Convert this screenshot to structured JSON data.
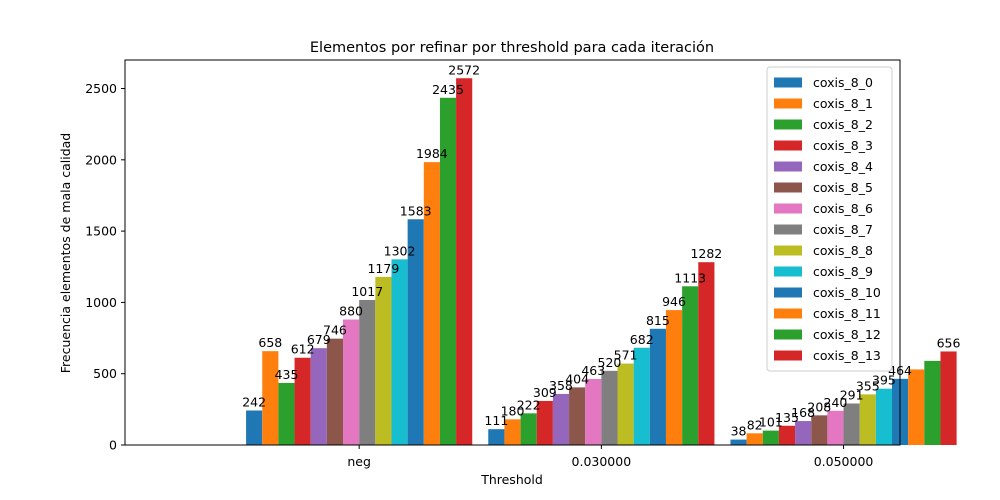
{
  "chart_data": {
    "type": "bar",
    "title": "Elementos por refinar por threshold para cada iteración",
    "xlabel": "Threshold",
    "ylabel": "Frecuencia elementos de mala calidad",
    "categories": [
      "neg",
      "0.030000",
      "0.050000"
    ],
    "ylim": [
      0,
      2700
    ],
    "yticks": [
      0,
      500,
      1000,
      1500,
      2000,
      2500
    ],
    "grid": false,
    "legend_position": "top-right",
    "series": [
      {
        "name": "coxis_8_0",
        "color": "#1f77b4",
        "values": [
          242,
          111,
          38
        ],
        "labels": [
          "242",
          "111",
          "38"
        ]
      },
      {
        "name": "coxis_8_1",
        "color": "#ff7f0e",
        "values": [
          658,
          180,
          82
        ],
        "labels": [
          "658",
          "180",
          "82"
        ]
      },
      {
        "name": "coxis_8_2",
        "color": "#2ca02c",
        "values": [
          435,
          222,
          101
        ],
        "labels": [
          "435",
          "222",
          "101"
        ]
      },
      {
        "name": "coxis_8_3",
        "color": "#d62728",
        "values": [
          612,
          309,
          135
        ],
        "labels": [
          "612",
          "309",
          "135"
        ]
      },
      {
        "name": "coxis_8_4",
        "color": "#9467bd",
        "values": [
          679,
          358,
          168
        ],
        "labels": [
          "679",
          "358",
          "168"
        ]
      },
      {
        "name": "coxis_8_5",
        "color": "#8c564b",
        "values": [
          746,
          404,
          208
        ],
        "labels": [
          "746",
          "404",
          "208"
        ]
      },
      {
        "name": "coxis_8_6",
        "color": "#e377c2",
        "values": [
          880,
          463,
          240
        ],
        "labels": [
          "880",
          "463",
          "240"
        ]
      },
      {
        "name": "coxis_8_7",
        "color": "#7f7f7f",
        "values": [
          1017,
          520,
          291
        ],
        "labels": [
          "1017",
          "520",
          "291"
        ]
      },
      {
        "name": "coxis_8_8",
        "color": "#bcbd22",
        "values": [
          1179,
          571,
          355
        ],
        "labels": [
          "1179",
          "571",
          "355"
        ]
      },
      {
        "name": "coxis_8_9",
        "color": "#17becf",
        "values": [
          1302,
          682,
          395
        ],
        "labels": [
          "1302",
          "682",
          "395"
        ]
      },
      {
        "name": "coxis_8_10",
        "color": "#1f77b4",
        "values": [
          1583,
          815,
          464
        ],
        "labels": [
          "1583",
          "815",
          "464"
        ]
      },
      {
        "name": "coxis_8_11",
        "color": "#ff7f0e",
        "values": [
          1984,
          946,
          530
        ],
        "labels": [
          "1984",
          "946",
          ""
        ]
      },
      {
        "name": "coxis_8_12",
        "color": "#2ca02c",
        "values": [
          2435,
          1113,
          590
        ],
        "labels": [
          "2435",
          "1113",
          ""
        ]
      },
      {
        "name": "coxis_8_13",
        "color": "#d62728",
        "values": [
          2572,
          1282,
          656
        ],
        "labels": [
          "2572",
          "1282",
          "656"
        ]
      }
    ]
  }
}
